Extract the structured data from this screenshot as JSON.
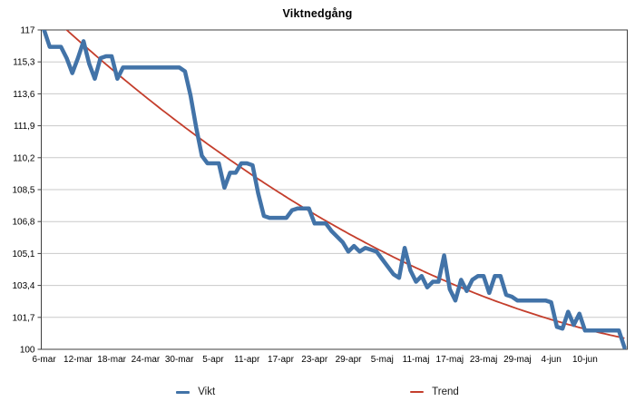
{
  "chart_data": {
    "type": "line",
    "title": "Viktnedgång",
    "xlabel": "",
    "ylabel": "",
    "ylim": [
      100,
      117
    ],
    "y_tick_step": 1.7,
    "grid": "horizontal",
    "legend_position": "bottom",
    "y_tick_labels": [
      "117",
      "115,3",
      "113,6",
      "111,9",
      "110,2",
      "108,5",
      "106,8",
      "105,1",
      "103,4",
      "101,7",
      "100"
    ],
    "x_tick_labels": [
      "6-mar",
      "12-mar",
      "18-mar",
      "24-mar",
      "30-mar",
      "5-apr",
      "11-apr",
      "17-apr",
      "23-apr",
      "29-apr",
      "5-maj",
      "11-maj",
      "17-maj",
      "23-maj",
      "29-maj",
      "4-jun",
      "10-jun"
    ],
    "x_categories": [
      "6-mar",
      "7-mar",
      "8-mar",
      "9-mar",
      "10-mar",
      "11-mar",
      "12-mar",
      "13-mar",
      "14-mar",
      "15-mar",
      "16-mar",
      "17-mar",
      "18-mar",
      "19-mar",
      "20-mar",
      "21-mar",
      "22-mar",
      "23-mar",
      "24-mar",
      "25-mar",
      "26-mar",
      "27-mar",
      "28-mar",
      "29-mar",
      "30-mar",
      "31-mar",
      "1-apr",
      "2-apr",
      "3-apr",
      "4-apr",
      "5-apr",
      "6-apr",
      "7-apr",
      "8-apr",
      "9-apr",
      "10-apr",
      "11-apr",
      "12-apr",
      "13-apr",
      "14-apr",
      "15-apr",
      "16-apr",
      "17-apr",
      "18-apr",
      "19-apr",
      "20-apr",
      "21-apr",
      "22-apr",
      "23-apr",
      "24-apr",
      "25-apr",
      "26-apr",
      "27-apr",
      "28-apr",
      "29-apr",
      "30-apr",
      "1-maj",
      "2-maj",
      "3-maj",
      "4-maj",
      "5-maj",
      "6-maj",
      "7-maj",
      "8-maj",
      "9-maj",
      "10-maj",
      "11-maj",
      "12-maj",
      "13-maj",
      "14-maj",
      "15-maj",
      "16-maj",
      "17-maj",
      "18-maj",
      "19-maj",
      "20-maj",
      "21-maj",
      "22-maj",
      "23-maj",
      "24-maj",
      "25-maj",
      "26-maj",
      "27-maj",
      "28-maj",
      "29-maj",
      "30-maj",
      "31-maj",
      "1-jun",
      "2-jun",
      "3-jun",
      "4-jun",
      "5-jun",
      "6-jun",
      "7-jun",
      "8-jun",
      "9-jun",
      "10-jun",
      "11-jun",
      "12-jun",
      "13-jun",
      "14-jun",
      "15-jun",
      "16-jun",
      "17-jun"
    ],
    "series": [
      {
        "name": "Vikt",
        "color": "#4273A8",
        "line_width": 4.5,
        "values": [
          117,
          116.1,
          116.1,
          116.1,
          115.5,
          114.7,
          115.5,
          116.4,
          115.2,
          114.4,
          115.5,
          115.6,
          115.6,
          114.4,
          115,
          115,
          115,
          115,
          115,
          115,
          115,
          115,
          115,
          115,
          115,
          114.8,
          113.5,
          111.8,
          110.3,
          109.9,
          109.9,
          109.9,
          108.6,
          109.4,
          109.4,
          109.9,
          109.9,
          109.8,
          108.3,
          107.1,
          107,
          107,
          107,
          107,
          107.4,
          107.5,
          107.5,
          107.5,
          106.7,
          106.7,
          106.7,
          106.3,
          106,
          105.7,
          105.2,
          105.5,
          105.2,
          105.4,
          105.3,
          105.2,
          104.8,
          104.4,
          104,
          103.8,
          105.4,
          104.2,
          103.6,
          103.9,
          103.3,
          103.6,
          103.6,
          105,
          103.2,
          102.6,
          103.7,
          103.1,
          103.7,
          103.9,
          103.9,
          103,
          103.9,
          103.9,
          102.9,
          102.8,
          102.6,
          102.6,
          102.6,
          102.6,
          102.6,
          102.6,
          102.5,
          101.2,
          101.1,
          102,
          101.3,
          101.9,
          101,
          101,
          101,
          101,
          101,
          101,
          101,
          100.1
        ]
      },
      {
        "name": "Trend",
        "color": "#C43E2C",
        "line_width": 1.8,
        "trend_poly": {
          "c0": 118.09,
          "c1": -0.277,
          "c2": 0.00104
        }
      }
    ],
    "frame_color": "#3f3f3f",
    "gridline_color": "#c9c9c9",
    "tick_label_color": "#000000"
  }
}
